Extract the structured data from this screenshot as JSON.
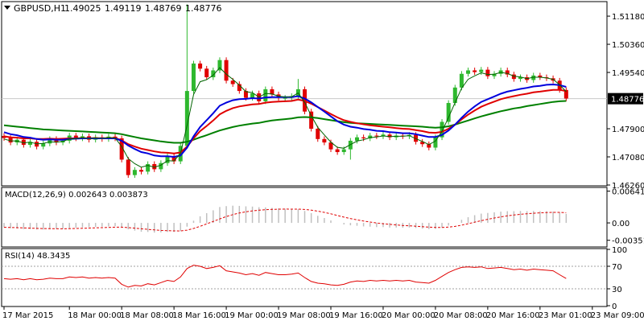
{
  "header": {
    "symbol": "GBPUSD,H1",
    "open": "1.49025",
    "high": "1.49119",
    "low": "1.48769",
    "close": "1.48776"
  },
  "price_axis": {
    "ticks": [
      {
        "label": "1.51180",
        "value": 1.5118
      },
      {
        "label": "1.50360",
        "value": 1.5036
      },
      {
        "label": "1.49540",
        "value": 1.4954
      },
      {
        "label": "1.47900",
        "value": 1.479
      },
      {
        "label": "1.47080",
        "value": 1.4708
      },
      {
        "label": "1.46260",
        "value": 1.4626
      }
    ],
    "current_price_label": "1.48776",
    "current_price": 1.48776
  },
  "macd": {
    "label": "MACD(12,26,9) 0.002643 0.003873",
    "ticks": [
      {
        "label": "0.006412",
        "value": 0.006412
      },
      {
        "label": "0.00",
        "value": 0.0
      },
      {
        "label": "-0.00351",
        "value": -0.00351
      }
    ]
  },
  "rsi": {
    "label": "RSI(14) 48.3435",
    "ticks": [
      {
        "label": "100",
        "value": 100
      },
      {
        "label": "70",
        "value": 70
      },
      {
        "label": "30",
        "value": 30
      },
      {
        "label": "0",
        "value": 0
      }
    ],
    "levels": [
      70,
      30
    ]
  },
  "time_axis": {
    "labels": [
      {
        "label": "17 Mar 2015",
        "bar": 0
      },
      {
        "label": "18 Mar 00:00",
        "bar": 10
      },
      {
        "label": "18 Mar 08:00",
        "bar": 18
      },
      {
        "label": "18 Mar 16:00",
        "bar": 26
      },
      {
        "label": "19 Mar 00:00",
        "bar": 34
      },
      {
        "label": "19 Mar 08:00",
        "bar": 42
      },
      {
        "label": "19 Mar 16:00",
        "bar": 50
      },
      {
        "label": "20 Mar 00:00",
        "bar": 58
      },
      {
        "label": "20 Mar 08:00",
        "bar": 66
      },
      {
        "label": "20 Mar 16:00",
        "bar": 74
      },
      {
        "label": "23 Mar 01:00",
        "bar": 82
      },
      {
        "label": "23 Mar 09:00",
        "bar": 90
      }
    ]
  },
  "colors": {
    "background": "#ffffff",
    "text": "#000000",
    "grid": "#c8c8c8",
    "up_candle": "#2eb82e",
    "down_candle": "#e00000",
    "wick": "#000000",
    "ma_fast": "#006400",
    "ma_blue": "#0000dd",
    "ma_red": "#e00000",
    "ma_slow": "#008000",
    "macd_hist": "#c0c0c0",
    "macd_signal": "#e00000",
    "rsi_line": "#e00000",
    "level_line": "#a0a0a0"
  },
  "chart_data": {
    "type": "candlestick",
    "ylim": [
      1.4626,
      1.5158
    ],
    "closes": [
      1.4763,
      1.475,
      1.4758,
      1.4743,
      1.4752,
      1.4738,
      1.4747,
      1.476,
      1.475,
      1.4755,
      1.477,
      1.4762,
      1.4768,
      1.4758,
      1.4765,
      1.476,
      1.4767,
      1.4762,
      1.47,
      1.4655,
      1.467,
      1.4665,
      1.4687,
      1.4672,
      1.469,
      1.471,
      1.4695,
      1.474,
      1.49,
      1.498,
      1.4965,
      1.494,
      1.496,
      1.499,
      1.493,
      1.492,
      1.49,
      1.488,
      1.4893,
      1.487,
      1.4905,
      1.489,
      1.488,
      1.488,
      1.4885,
      1.4905,
      1.484,
      1.479,
      1.476,
      1.475,
      1.473,
      1.4722,
      1.473,
      1.4755,
      1.4765,
      1.4762,
      1.477,
      1.4768,
      1.4773,
      1.4765,
      1.477,
      1.4768,
      1.4772,
      1.4752,
      1.4745,
      1.4735,
      1.4765,
      1.481,
      1.4865,
      1.491,
      1.495,
      1.496,
      1.4955,
      1.4962,
      1.4943,
      1.495,
      1.496,
      1.4948,
      1.4935,
      1.494,
      1.4932,
      1.4945,
      1.494,
      1.4937,
      1.493,
      1.4903,
      1.4878
    ],
    "ma_green": [
      1.476,
      1.4755,
      1.4754,
      1.4749,
      1.4751,
      1.4746,
      1.4747,
      1.4752,
      1.4751,
      1.4753,
      1.476,
      1.4761,
      1.4764,
      1.4761,
      1.4763,
      1.4762,
      1.4764,
      1.4763,
      1.4738,
      1.4703,
      1.4688,
      1.4678,
      1.4683,
      1.4678,
      1.4684,
      1.4697,
      1.4696,
      1.4718,
      1.48,
      1.489,
      1.4927,
      1.4933,
      1.4946,
      1.4968,
      1.4949,
      1.4934,
      1.4917,
      1.4898,
      1.4895,
      1.4882,
      1.4893,
      1.4891,
      1.4885,
      1.4882,
      1.4883,
      1.4894,
      1.4867,
      1.4828,
      1.4794,
      1.4772,
      1.4751,
      1.4736,
      1.4733,
      1.4744,
      1.4754,
      1.4758,
      1.4764,
      1.4766,
      1.4769,
      1.4767,
      1.4768,
      1.4768,
      1.477,
      1.4761,
      1.4753,
      1.4744,
      1.4754,
      1.4782,
      1.4823,
      1.4866,
      1.4908,
      1.4934,
      1.4944,
      1.4953,
      1.4948,
      1.4949,
      1.4954,
      1.4951,
      1.4943,
      1.4941,
      1.4936,
      1.494,
      1.494,
      1.4938,
      1.4934,
      1.4918,
      1.4898
    ],
    "ma_blue": [
      1.478,
      1.4774,
      1.4771,
      1.4766,
      1.4764,
      1.476,
      1.4758,
      1.4759,
      1.4758,
      1.4758,
      1.476,
      1.4761,
      1.4762,
      1.4762,
      1.4762,
      1.4762,
      1.4762,
      1.4762,
      1.4755,
      1.4741,
      1.4731,
      1.4722,
      1.4718,
      1.4712,
      1.471,
      1.471,
      1.4708,
      1.4712,
      1.4735,
      1.4768,
      1.4795,
      1.4815,
      1.4835,
      1.4857,
      1.4866,
      1.4873,
      1.4876,
      1.4877,
      1.4879,
      1.4878,
      1.4881,
      1.4882,
      1.4882,
      1.4882,
      1.4882,
      1.4885,
      1.4878,
      1.4867,
      1.4853,
      1.484,
      1.4826,
      1.4812,
      1.4802,
      1.4796,
      1.4793,
      1.4789,
      1.4787,
      1.4784,
      1.4783,
      1.478,
      1.4779,
      1.4777,
      1.4777,
      1.4774,
      1.477,
      1.4766,
      1.4766,
      1.4772,
      1.4785,
      1.4802,
      1.4822,
      1.484,
      1.4855,
      1.4868,
      1.4876,
      1.4884,
      1.4892,
      1.4898,
      1.4902,
      1.4906,
      1.4909,
      1.4913,
      1.4915,
      1.4918,
      1.4919,
      1.4917,
      1.4912
    ],
    "ma_red": [
      1.4768,
      1.4765,
      1.4764,
      1.4762,
      1.4762,
      1.476,
      1.476,
      1.4761,
      1.476,
      1.4761,
      1.4762,
      1.4762,
      1.4763,
      1.4762,
      1.4763,
      1.4762,
      1.4763,
      1.4763,
      1.4756,
      1.4745,
      1.4738,
      1.4732,
      1.4728,
      1.4724,
      1.4721,
      1.472,
      1.4718,
      1.4721,
      1.4738,
      1.4762,
      1.4783,
      1.4798,
      1.4814,
      1.4832,
      1.4842,
      1.485,
      1.4855,
      1.4858,
      1.4861,
      1.4862,
      1.4866,
      1.4868,
      1.4869,
      1.487,
      1.4871,
      1.4875,
      1.4871,
      1.4863,
      1.4853,
      1.4843,
      1.4833,
      1.4823,
      1.4815,
      1.481,
      1.4806,
      1.4803,
      1.48,
      1.4798,
      1.4796,
      1.4794,
      1.4792,
      1.479,
      1.4789,
      1.4786,
      1.4783,
      1.4779,
      1.4778,
      1.4781,
      1.479,
      1.4802,
      1.4817,
      1.4831,
      1.4843,
      1.4854,
      1.4862,
      1.4869,
      1.4876,
      1.4881,
      1.4885,
      1.4889,
      1.4892,
      1.4896,
      1.4898,
      1.4901,
      1.4903,
      1.4903,
      1.49
    ],
    "ma_slow": [
      1.48,
      1.4798,
      1.4796,
      1.4794,
      1.4792,
      1.479,
      1.4788,
      1.4787,
      1.4786,
      1.4785,
      1.4784,
      1.4783,
      1.4782,
      1.4781,
      1.478,
      1.4779,
      1.4778,
      1.4777,
      1.4774,
      1.477,
      1.4766,
      1.4762,
      1.4759,
      1.4756,
      1.4753,
      1.4751,
      1.4749,
      1.4749,
      1.4752,
      1.4758,
      1.4765,
      1.4771,
      1.4778,
      1.4785,
      1.479,
      1.4795,
      1.4799,
      1.4802,
      1.4805,
      1.4807,
      1.4811,
      1.4814,
      1.4816,
      1.4818,
      1.482,
      1.4823,
      1.4824,
      1.4823,
      1.4821,
      1.4818,
      1.4815,
      1.4812,
      1.4809,
      1.4807,
      1.4806,
      1.4805,
      1.4804,
      1.4803,
      1.4802,
      1.4801,
      1.48,
      1.4799,
      1.4798,
      1.4797,
      1.4796,
      1.4794,
      1.4793,
      1.4794,
      1.4797,
      1.4802,
      1.4808,
      1.4814,
      1.482,
      1.4826,
      1.4831,
      1.4836,
      1.4841,
      1.4845,
      1.4849,
      1.4852,
      1.4856,
      1.4859,
      1.4862,
      1.4865,
      1.4868,
      1.487,
      1.4871
    ],
    "macd_ylim": [
      -0.0047,
      0.007
    ],
    "macd_hist_scale": 0.0058,
    "macd_signal_scale": 0.005,
    "rsi_ylim": [
      0,
      100
    ],
    "rsi_values": [
      48,
      47,
      48,
      46,
      48,
      46,
      47,
      49,
      48,
      48,
      51,
      50,
      51,
      49,
      50,
      49,
      50,
      49,
      38,
      33,
      36,
      35,
      39,
      37,
      41,
      45,
      43,
      51,
      66,
      72,
      70,
      66,
      68,
      71,
      62,
      60,
      58,
      55,
      57,
      54,
      59,
      57,
      55,
      55,
      56,
      58,
      50,
      43,
      40,
      39,
      37,
      36,
      38,
      42,
      44,
      43,
      45,
      44,
      45,
      44,
      45,
      44,
      45,
      42,
      41,
      40,
      45,
      52,
      59,
      64,
      68,
      69,
      68,
      69,
      66,
      67,
      68,
      66,
      64,
      65,
      63,
      65,
      64,
      63,
      62,
      55,
      48.3435
    ]
  }
}
